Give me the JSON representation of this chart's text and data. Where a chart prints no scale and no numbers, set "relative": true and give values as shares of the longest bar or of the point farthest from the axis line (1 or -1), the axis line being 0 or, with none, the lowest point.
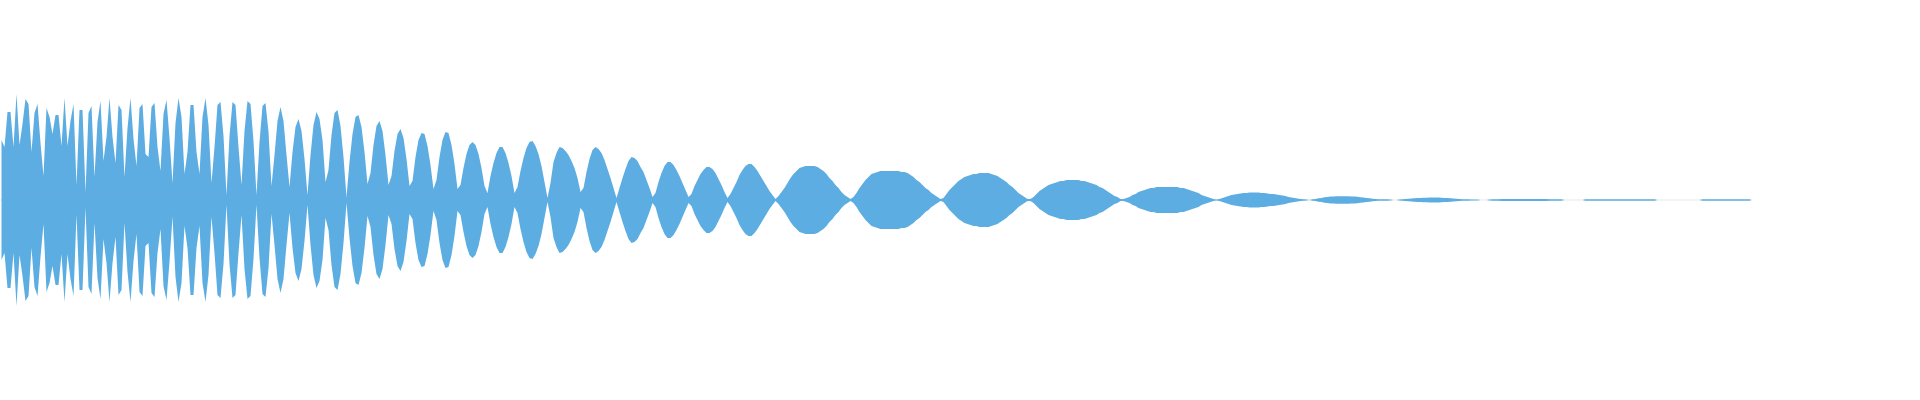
{
  "chart_data": {
    "type": "area",
    "relative": true,
    "categories": [
      null,
      null,
      null,
      null,
      null,
      null,
      null,
      null,
      null,
      null,
      null,
      null,
      null,
      null,
      null,
      null,
      null,
      null,
      null,
      null,
      null,
      null,
      null,
      null,
      null,
      null,
      null,
      null,
      null,
      null,
      null,
      null,
      null,
      null,
      null,
      null,
      null,
      null,
      null,
      null,
      null,
      null,
      null,
      null,
      null,
      null,
      null,
      null,
      null,
      null,
      null,
      null,
      null,
      null,
      null,
      null,
      null,
      null,
      null,
      null,
      null,
      null,
      null,
      null,
      null,
      null,
      null,
      null,
      null,
      null,
      null,
      null,
      null,
      null,
      null,
      null,
      null,
      null,
      null,
      null,
      null,
      null,
      null,
      null,
      null,
      null,
      null,
      null,
      null,
      null,
      null,
      null,
      null,
      null,
      null,
      null,
      null,
      null,
      null,
      null,
      null,
      null,
      null,
      null,
      null,
      null,
      null,
      null,
      null,
      null,
      null,
      null,
      null,
      null,
      null,
      null,
      null,
      null,
      null,
      null,
      null,
      null,
      null,
      null,
      null,
      null,
      null,
      null,
      null,
      null,
      null,
      null,
      null,
      null,
      null,
      null,
      null,
      null,
      null,
      null,
      null,
      null,
      null,
      null,
      null,
      null,
      null,
      null,
      null,
      null,
      null,
      null,
      null,
      null,
      null,
      null,
      null,
      null,
      null,
      null,
      null,
      null,
      null,
      null,
      null,
      null,
      null,
      null,
      null,
      null,
      null,
      null,
      null,
      null,
      null,
      null,
      null,
      null,
      null,
      null,
      null,
      null,
      null,
      null,
      null,
      null,
      null,
      null,
      null,
      null,
      null,
      null,
      null,
      null,
      null,
      null,
      null,
      null,
      null,
      null,
      null,
      null,
      null,
      null,
      null,
      null,
      null,
      null,
      null,
      null,
      null,
      null,
      null,
      null,
      null,
      null,
      null,
      null,
      null,
      null,
      null,
      null,
      null,
      null,
      null,
      null,
      null,
      null,
      null,
      null,
      null,
      null,
      null,
      null,
      null,
      null,
      null,
      null,
      null,
      null,
      null,
      null,
      null,
      null,
      null,
      null,
      null,
      null,
      null,
      null,
      null,
      null,
      null,
      null,
      null,
      null,
      null,
      null,
      null,
      null,
      null,
      null,
      null,
      null,
      null,
      null,
      null,
      null,
      null,
      null,
      null,
      null,
      null,
      null,
      null,
      null,
      null,
      null,
      null,
      null,
      null,
      null,
      null,
      null,
      null,
      null,
      null,
      null,
      null,
      null,
      null,
      null,
      null,
      null,
      null,
      null,
      null,
      null,
      null,
      null,
      null,
      null,
      null,
      null,
      null,
      null,
      null,
      null,
      null,
      null,
      null,
      null,
      null,
      null,
      null,
      null,
      null,
      null,
      null,
      null,
      null,
      null,
      null,
      null,
      null,
      null,
      null,
      null,
      null,
      null,
      null,
      null,
      null,
      null,
      null,
      null,
      null,
      null,
      null,
      null,
      null,
      null,
      null,
      null,
      null,
      null,
      null,
      null,
      null,
      null,
      null,
      null,
      null,
      null,
      null,
      null,
      null,
      null,
      null,
      null,
      null,
      null,
      null,
      null,
      null,
      null,
      null,
      null,
      null,
      null,
      null,
      null,
      null,
      null,
      null,
      null,
      null,
      null,
      null,
      null,
      null,
      null,
      null,
      null,
      null,
      null,
      null,
      null,
      null,
      null,
      null,
      null,
      null,
      null,
      null,
      null,
      null,
      null,
      null,
      null,
      null,
      null,
      null,
      null,
      null,
      null,
      null,
      null,
      null,
      null,
      null,
      null,
      null,
      null,
      null,
      null,
      null,
      null,
      null,
      null,
      null,
      null,
      null,
      null,
      null,
      null,
      null,
      null,
      null,
      null,
      null,
      null,
      null,
      null,
      null,
      null,
      null,
      null,
      null,
      null,
      null,
      null,
      null,
      null,
      null,
      null,
      null,
      null,
      null,
      null,
      null,
      null,
      null,
      null,
      null,
      null,
      null,
      null,
      null,
      null,
      null,
      null,
      null,
      null,
      null,
      null,
      null,
      null,
      null,
      null,
      null,
      null,
      null,
      null,
      null,
      null,
      null,
      null,
      null,
      null,
      null,
      null,
      null,
      null,
      null,
      null,
      null,
      null,
      null,
      null,
      null,
      null,
      null,
      null,
      null,
      null,
      null,
      null,
      null,
      null,
      null,
      null,
      null,
      null,
      null,
      null,
      null,
      null,
      null,
      null,
      null,
      null,
      null,
      null,
      null,
      null,
      null,
      null,
      null,
      null,
      null,
      null,
      null,
      null,
      null,
      null,
      null,
      null,
      null,
      null,
      null,
      null,
      null,
      null,
      null,
      null,
      null,
      null,
      null,
      null,
      null,
      null,
      null,
      null,
      null,
      null,
      null,
      null,
      null,
      null,
      null,
      null,
      null,
      null,
      null,
      null,
      null,
      null,
      null,
      null,
      null,
      null,
      null,
      null,
      null,
      null,
      null,
      null,
      null,
      null,
      null,
      null,
      null,
      null,
      null,
      null,
      null,
      null,
      null,
      null,
      null,
      null,
      null,
      null
    ],
    "series": [
      {
        "color": "#5dade2",
        "values": [
          0.566,
          0.5,
          0.83,
          0.83,
          0.5,
          1,
          0.518,
          0.716,
          0.952,
          0.906,
          0.452,
          0.82,
          0.906,
          0.538,
          0.226,
          0.868,
          0.784,
          0.622,
          0.802,
          0.802,
          0.51,
          0.962,
          0.51,
          0.746,
          0.906,
          0.142,
          0.85,
          0.85,
          0.076,
          0.82,
          0.886,
          0.216,
          0.736,
          0.934,
          0.368,
          0.594,
          0.962,
          0.594,
          0.35,
          0.896,
          0.85,
          0.216,
          0.68,
          0.962,
          0.576,
          0.32,
          0.868,
          0.906,
          0.434,
          0.406,
          0.878,
          0.916,
          0.5,
          0.274,
          0.812,
          0.944,
          0.584,
          0.16,
          0.726,
          0.962,
          0.784,
          0.246,
          0.452,
          0.896,
          0.896,
          0.452,
          0.246,
          0.784,
          0.962,
          0.708,
          0.16,
          0.5,
          0.896,
          0.924,
          0.604,
          0.048,
          0.604,
          0.924,
          0.896,
          0.5,
          0.142,
          0.65,
          0.934,
          0.906,
          0.556,
          0.048,
          0.548,
          0.886,
          0.916,
          0.642,
          0.132,
          0.424,
          0.746,
          0.878,
          0.746,
          0.424,
          0.122,
          0.452,
          0.688,
          0.764,
          0.65,
          0.386,
          0.048,
          0.424,
          0.708,
          0.83,
          0.764,
          0.566,
          0.17,
          0.284,
          0.614,
          0.82,
          0.85,
          0.698,
          0.406,
          0.028,
          0.358,
          0.622,
          0.784,
          0.802,
          0.688,
          0.452,
          0.15,
          0.254,
          0.518,
          0.698,
          0.746,
          0.65,
          0.424,
          0.142,
          0.226,
          0.462,
          0.622,
          0.67,
          0.584,
          0.386,
          0.132,
          0.18,
          0.406,
          0.566,
          0.632,
          0.622,
          0.51,
          0.33,
          0.104,
          0.188,
          0.406,
          0.566,
          0.642,
          0.632,
          0.518,
          0.34,
          0.104,
          0.142,
          0.302,
          0.434,
          0.518,
          0.548,
          0.518,
          0.434,
          0.302,
          0.132,
          0.066,
          0.226,
          0.35,
          0.444,
          0.5,
          0.5,
          0.444,
          0.35,
          0.226,
          0.066,
          0.122,
          0.274,
          0.396,
          0.49,
          0.548,
          0.556,
          0.51,
          0.434,
          0.32,
          0.17,
          0.018,
          0.16,
          0.358,
          0.444,
          0.5,
          0.49,
          0.462,
          0.424,
          0.368,
          0.302,
          0.208,
          0.076,
          0.114,
          0.264,
          0.386,
          0.472,
          0.5,
          0.482,
          0.444,
          0.378,
          0.292,
          0.208,
          0.114,
          0.018,
          0.114,
          0.208,
          0.292,
          0.368,
          0.406,
          0.396,
          0.368,
          0.312,
          0.264,
          0.188,
          0.114,
          0.028,
          0.066,
          0.17,
          0.254,
          0.32,
          0.358,
          0.358,
          0.33,
          0.284,
          0.226,
          0.16,
          0.094,
          0.028,
          0.056,
          0.132,
          0.188,
          0.246,
          0.284,
          0.312,
          0.312,
          0.292,
          0.254,
          0.198,
          0.142,
          0.076,
          0.018,
          0.056,
          0.114,
          0.17,
          0.236,
          0.284,
          0.32,
          0.34,
          0.34,
          0.312,
          0.274,
          0.226,
          0.18,
          0.132,
          0.084,
          0.048,
          0.01,
          0.038,
          0.076,
          0.114,
          0.16,
          0.208,
          0.246,
          0.274,
          0.302,
          0.312,
          0.32,
          0.32,
          0.32,
          0.32,
          0.312,
          0.292,
          0.274,
          0.246,
          0.208,
          0.18,
          0.142,
          0.114,
          0.076,
          0.048,
          0.028,
          0.01,
          0.028,
          0.066,
          0.114,
          0.15,
          0.188,
          0.216,
          0.246,
          0.254,
          0.264,
          0.274,
          0.274,
          0.274,
          0.274,
          0.274,
          0.274,
          0.274,
          0.264,
          0.264,
          0.254,
          0.236,
          0.216,
          0.188,
          0.17,
          0.142,
          0.114,
          0.094,
          0.066,
          0.048,
          0.028,
          0.01,
          0.018,
          0.056,
          0.094,
          0.122,
          0.15,
          0.18,
          0.198,
          0.216,
          0.226,
          0.236,
          0.246,
          0.246,
          0.254,
          0.254,
          0.254,
          0.254,
          0.246,
          0.236,
          0.226,
          0.208,
          0.188,
          0.17,
          0.142,
          0.122,
          0.094,
          0.066,
          0.048,
          0.028,
          0.01,
          0.01,
          0.028,
          0.056,
          0.084,
          0.104,
          0.122,
          0.142,
          0.15,
          0.16,
          0.17,
          0.18,
          0.18,
          0.188,
          0.188,
          0.188,
          0.188,
          0.188,
          0.18,
          0.18,
          0.17,
          0.16,
          0.15,
          0.142,
          0.122,
          0.114,
          0.094,
          0.076,
          0.056,
          0.038,
          0.028,
          0.01,
          0.01,
          0.018,
          0.028,
          0.048,
          0.056,
          0.076,
          0.084,
          0.094,
          0.104,
          0.114,
          0.114,
          0.122,
          0.122,
          0.122,
          0.122,
          0.122,
          0.122,
          0.122,
          0.122,
          0.114,
          0.114,
          0.104,
          0.094,
          0.084,
          0.076,
          0.066,
          0.048,
          0.038,
          0.028,
          0.018,
          0.01,
          0.004,
          0.01,
          0.018,
          0.028,
          0.038,
          0.048,
          0.052,
          0.056,
          0.062,
          0.066,
          0.066,
          0.07,
          0.07,
          0.07,
          0.07,
          0.066,
          0.066,
          0.062,
          0.056,
          0.056,
          0.052,
          0.048,
          0.042,
          0.038,
          0.028,
          0.024,
          0.018,
          0.014,
          0.01,
          0.006,
          0.004,
          0,
          0.006,
          0.01,
          0.016,
          0.018,
          0.026,
          0.028,
          0.034,
          0.034,
          0.036,
          0.036,
          0.036,
          0.036,
          0.036,
          0.034,
          0.034,
          0.03,
          0.026,
          0.024,
          0.018,
          0.016,
          0.012,
          0.01,
          0.008,
          0.006,
          0.006,
          0.006,
          0.004,
          0,
          0,
          0.004,
          0.006,
          0.01,
          0.012,
          0.014,
          0.016,
          0.018,
          0.02,
          0.022,
          0.022,
          0.024,
          0.024,
          0.024,
          0.024,
          0.022,
          0.02,
          0.018,
          0.016,
          0.014,
          0.012,
          0.01,
          0.008,
          0.006,
          0.006,
          0.004,
          0.004,
          0.004,
          0,
          0,
          0,
          0.004,
          0.006,
          0.006,
          0.006,
          0.01,
          0.01,
          0.01,
          0.01,
          0.01,
          0.01,
          0.01,
          0.01,
          0.01,
          0.01,
          0.01,
          0.01,
          0.01,
          0.01,
          0.01,
          0.01,
          0.006,
          0.006,
          0.006,
          0.006,
          0.006,
          0,
          0,
          0,
          0,
          0,
          0,
          0,
          0.006,
          0.006,
          0.006,
          0.006,
          0.006,
          0.006,
          0.006,
          0.006,
          0.006,
          0.006,
          0.006,
          0.006,
          0.006,
          0.006,
          0.006,
          0.006,
          0.006,
          0.006,
          0.006,
          0.006,
          0.006,
          0.006,
          0.006,
          0.006,
          0,
          0,
          0,
          0,
          0,
          0,
          0,
          0,
          0,
          0,
          0,
          0,
          0,
          0,
          0,
          0.006,
          0.006,
          0.006,
          0.006,
          0.006,
          0.006,
          0.006,
          0.006,
          0.006,
          0.006,
          0.006,
          0.006,
          0.006,
          0.006,
          0.006,
          0.006,
          0.006
        ]
      },
      {
        "color": "#5caee2",
        "values": [
          -0.566,
          -0.5,
          -0.83,
          -0.83,
          -0.5,
          -1,
          -0.518,
          -0.716,
          -0.952,
          -0.906,
          -0.452,
          -0.82,
          -0.906,
          -0.538,
          -0.226,
          -0.868,
          -0.784,
          -0.622,
          -0.802,
          -0.802,
          -0.51,
          -0.962,
          -0.51,
          -0.746,
          -0.906,
          -0.142,
          -0.85,
          -0.85,
          -0.076,
          -0.82,
          -0.886,
          -0.216,
          -0.736,
          -0.934,
          -0.368,
          -0.594,
          -0.962,
          -0.594,
          -0.35,
          -0.896,
          -0.85,
          -0.216,
          -0.68,
          -0.962,
          -0.576,
          -0.32,
          -0.868,
          -0.906,
          -0.434,
          -0.406,
          -0.878,
          -0.916,
          -0.5,
          -0.274,
          -0.812,
          -0.944,
          -0.584,
          -0.16,
          -0.726,
          -0.962,
          -0.784,
          -0.246,
          -0.452,
          -0.896,
          -0.896,
          -0.452,
          -0.246,
          -0.784,
          -0.962,
          -0.708,
          -0.16,
          -0.5,
          -0.896,
          -0.924,
          -0.604,
          -0.048,
          -0.604,
          -0.924,
          -0.896,
          -0.5,
          -0.142,
          -0.65,
          -0.934,
          -0.906,
          -0.556,
          -0.048,
          -0.548,
          -0.886,
          -0.916,
          -0.642,
          -0.132,
          -0.424,
          -0.746,
          -0.878,
          -0.746,
          -0.424,
          -0.122,
          -0.452,
          -0.688,
          -0.764,
          -0.65,
          -0.386,
          -0.048,
          -0.424,
          -0.708,
          -0.83,
          -0.764,
          -0.566,
          -0.17,
          -0.284,
          -0.614,
          -0.82,
          -0.85,
          -0.698,
          -0.406,
          -0.028,
          -0.358,
          -0.622,
          -0.784,
          -0.802,
          -0.688,
          -0.452,
          -0.15,
          -0.254,
          -0.518,
          -0.698,
          -0.746,
          -0.65,
          -0.424,
          -0.142,
          -0.226,
          -0.462,
          -0.622,
          -0.67,
          -0.584,
          -0.386,
          -0.132,
          -0.18,
          -0.406,
          -0.566,
          -0.632,
          -0.622,
          -0.51,
          -0.33,
          -0.104,
          -0.188,
          -0.406,
          -0.566,
          -0.642,
          -0.632,
          -0.518,
          -0.34,
          -0.104,
          -0.142,
          -0.302,
          -0.434,
          -0.518,
          -0.548,
          -0.518,
          -0.434,
          -0.302,
          -0.132,
          -0.066,
          -0.226,
          -0.35,
          -0.444,
          -0.5,
          -0.5,
          -0.444,
          -0.35,
          -0.226,
          -0.066,
          -0.122,
          -0.274,
          -0.396,
          -0.49,
          -0.548,
          -0.556,
          -0.51,
          -0.434,
          -0.32,
          -0.17,
          -0.018,
          -0.16,
          -0.358,
          -0.444,
          -0.5,
          -0.49,
          -0.462,
          -0.424,
          -0.368,
          -0.302,
          -0.208,
          -0.076,
          -0.114,
          -0.264,
          -0.386,
          -0.472,
          -0.5,
          -0.482,
          -0.444,
          -0.378,
          -0.292,
          -0.208,
          -0.114,
          -0.018,
          -0.114,
          -0.208,
          -0.292,
          -0.368,
          -0.406,
          -0.396,
          -0.368,
          -0.312,
          -0.264,
          -0.188,
          -0.114,
          -0.028,
          -0.066,
          -0.17,
          -0.254,
          -0.32,
          -0.358,
          -0.358,
          -0.33,
          -0.284,
          -0.226,
          -0.16,
          -0.094,
          -0.028,
          -0.056,
          -0.132,
          -0.188,
          -0.246,
          -0.284,
          -0.312,
          -0.312,
          -0.292,
          -0.254,
          -0.198,
          -0.142,
          -0.076,
          -0.018,
          -0.056,
          -0.114,
          -0.17,
          -0.236,
          -0.284,
          -0.32,
          -0.34,
          -0.34,
          -0.312,
          -0.274,
          -0.226,
          -0.18,
          -0.132,
          -0.084,
          -0.048,
          -0.01,
          -0.038,
          -0.076,
          -0.114,
          -0.16,
          -0.208,
          -0.246,
          -0.274,
          -0.302,
          -0.312,
          -0.32,
          -0.32,
          -0.32,
          -0.32,
          -0.312,
          -0.292,
          -0.274,
          -0.246,
          -0.208,
          -0.18,
          -0.142,
          -0.114,
          -0.076,
          -0.048,
          -0.028,
          -0.01,
          -0.028,
          -0.066,
          -0.114,
          -0.15,
          -0.188,
          -0.216,
          -0.246,
          -0.254,
          -0.264,
          -0.274,
          -0.274,
          -0.274,
          -0.274,
          -0.274,
          -0.274,
          -0.274,
          -0.264,
          -0.264,
          -0.254,
          -0.236,
          -0.216,
          -0.188,
          -0.17,
          -0.142,
          -0.114,
          -0.094,
          -0.066,
          -0.048,
          -0.028,
          -0.01,
          -0.018,
          -0.056,
          -0.094,
          -0.122,
          -0.15,
          -0.18,
          -0.198,
          -0.216,
          -0.226,
          -0.236,
          -0.246,
          -0.246,
          -0.254,
          -0.254,
          -0.254,
          -0.254,
          -0.246,
          -0.236,
          -0.226,
          -0.208,
          -0.188,
          -0.17,
          -0.142,
          -0.122,
          -0.094,
          -0.066,
          -0.048,
          -0.028,
          -0.01,
          -0.01,
          -0.028,
          -0.056,
          -0.084,
          -0.104,
          -0.122,
          -0.142,
          -0.15,
          -0.16,
          -0.17,
          -0.18,
          -0.18,
          -0.188,
          -0.188,
          -0.188,
          -0.188,
          -0.188,
          -0.18,
          -0.18,
          -0.17,
          -0.16,
          -0.15,
          -0.142,
          -0.122,
          -0.114,
          -0.094,
          -0.076,
          -0.056,
          -0.038,
          -0.028,
          -0.01,
          -0.01,
          -0.018,
          -0.028,
          -0.048,
          -0.056,
          -0.076,
          -0.084,
          -0.094,
          -0.104,
          -0.114,
          -0.114,
          -0.122,
          -0.122,
          -0.122,
          -0.122,
          -0.122,
          -0.122,
          -0.122,
          -0.122,
          -0.114,
          -0.114,
          -0.104,
          -0.094,
          -0.084,
          -0.076,
          -0.066,
          -0.048,
          -0.038,
          -0.028,
          -0.018,
          -0.01,
          -0.004,
          -0.01,
          -0.018,
          -0.028,
          -0.038,
          -0.048,
          -0.052,
          -0.056,
          -0.062,
          -0.066,
          -0.066,
          -0.07,
          -0.07,
          -0.07,
          -0.07,
          -0.066,
          -0.066,
          -0.062,
          -0.056,
          -0.056,
          -0.052,
          -0.048,
          -0.042,
          -0.038,
          -0.028,
          -0.024,
          -0.018,
          -0.014,
          -0.01,
          -0.006,
          -0.004,
          0,
          -0.006,
          -0.01,
          -0.016,
          -0.018,
          -0.026,
          -0.028,
          -0.034,
          -0.034,
          -0.036,
          -0.036,
          -0.036,
          -0.036,
          -0.036,
          -0.034,
          -0.034,
          -0.03,
          -0.026,
          -0.024,
          -0.018,
          -0.016,
          -0.012,
          -0.01,
          -0.008,
          -0.006,
          -0.006,
          -0.006,
          -0.004,
          0,
          0,
          -0.004,
          -0.006,
          -0.01,
          -0.012,
          -0.014,
          -0.016,
          -0.018,
          -0.02,
          -0.022,
          -0.022,
          -0.024,
          -0.024,
          -0.024,
          -0.024,
          -0.022,
          -0.02,
          -0.018,
          -0.016,
          -0.014,
          -0.012,
          -0.01,
          -0.008,
          -0.006,
          -0.006,
          -0.004,
          -0.004,
          -0.004,
          0,
          0,
          0,
          -0.004,
          -0.006,
          -0.006,
          -0.006,
          -0.01,
          -0.01,
          -0.01,
          -0.01,
          -0.01,
          -0.01,
          -0.01,
          -0.01,
          -0.01,
          -0.01,
          -0.01,
          -0.01,
          -0.01,
          -0.01,
          -0.01,
          -0.01,
          -0.006,
          -0.006,
          -0.006,
          -0.006,
          -0.006,
          0,
          0,
          0,
          0,
          0,
          0,
          0,
          -0.006,
          -0.006,
          -0.006,
          -0.006,
          -0.006,
          -0.006,
          -0.006,
          -0.006,
          -0.006,
          -0.006,
          -0.006,
          -0.006,
          -0.006,
          -0.006,
          -0.006,
          -0.006,
          -0.006,
          -0.006,
          -0.006,
          -0.006,
          -0.006,
          -0.006,
          -0.006,
          -0.006,
          0,
          0,
          0,
          0,
          0,
          0,
          0,
          0,
          0,
          0,
          0,
          0,
          0,
          0,
          0,
          -0.006,
          -0.006,
          -0.006,
          -0.006,
          -0.006,
          -0.006,
          -0.006,
          -0.006,
          -0.006,
          -0.006,
          -0.006,
          -0.006,
          -0.006,
          -0.006,
          -0.006,
          -0.006,
          -0.006
        ]
      }
    ]
  }
}
